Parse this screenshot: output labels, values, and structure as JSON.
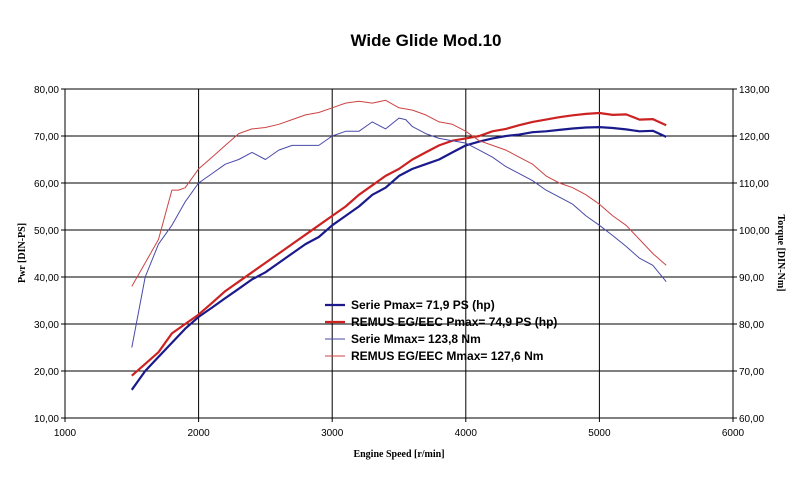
{
  "chart_data": {
    "type": "line",
    "title": "Wide Glide Mod.10",
    "xlabel": "Engine Speed [r/min]",
    "ylabel_left": "Pwr [DIN-PS]",
    "ylabel_right": "Torque [DIN-Nm]",
    "xlim": [
      1000,
      6000
    ],
    "ylim_left": [
      10,
      80
    ],
    "ylim_right": [
      60,
      130
    ],
    "x_ticks": [
      "1000",
      "2000",
      "3000",
      "4000",
      "5000",
      "6000"
    ],
    "y_ticks_left": [
      "10,00",
      "20,00",
      "30,00",
      "40,00",
      "50,00",
      "60,00",
      "70,00",
      "80,00"
    ],
    "y_ticks_right": [
      "60,00",
      "70,00",
      "80,00",
      "90,00",
      "100,00",
      "110,00",
      "120,00",
      "130,00"
    ],
    "grid": true,
    "legend_position": "lower-center",
    "series": [
      {
        "name": "Serie Pmax= 71,9 PS (hp)",
        "axis": "left",
        "color": "#1a1a8c",
        "width": 2.2,
        "x": [
          1500,
          1600,
          1700,
          1800,
          1900,
          2000,
          2100,
          2200,
          2300,
          2400,
          2500,
          2600,
          2700,
          2800,
          2900,
          3000,
          3100,
          3200,
          3300,
          3400,
          3500,
          3600,
          3700,
          3800,
          3900,
          4000,
          4100,
          4200,
          4300,
          4400,
          4500,
          4600,
          4700,
          4800,
          4900,
          5000,
          5100,
          5200,
          5300,
          5400,
          5500
        ],
        "values": [
          16,
          20,
          23,
          26,
          29,
          31.5,
          33.5,
          35.5,
          37.5,
          39.5,
          41,
          43,
          45,
          47,
          48.5,
          51,
          53,
          55,
          57.5,
          59,
          61.5,
          63,
          64,
          65,
          66.5,
          68,
          68.8,
          69.5,
          70,
          70.3,
          70.8,
          71,
          71.3,
          71.6,
          71.8,
          71.9,
          71.7,
          71.4,
          71,
          71.1,
          69.8
        ]
      },
      {
        "name": "REMUS EG/EEC Pmax=  74,9 PS (hp)",
        "axis": "left",
        "color": "#cc2222",
        "width": 2.2,
        "x": [
          1500,
          1600,
          1700,
          1800,
          1900,
          2000,
          2100,
          2200,
          2300,
          2400,
          2500,
          2600,
          2700,
          2800,
          2900,
          3000,
          3100,
          3200,
          3300,
          3400,
          3500,
          3600,
          3700,
          3800,
          3900,
          4000,
          4100,
          4200,
          4300,
          4400,
          4500,
          4600,
          4700,
          4800,
          4900,
          5000,
          5100,
          5200,
          5300,
          5400,
          5500
        ],
        "values": [
          19,
          21.5,
          24,
          28,
          30,
          32,
          34.5,
          37,
          39,
          41,
          43,
          45,
          47,
          49,
          51,
          53,
          55,
          57.5,
          59.5,
          61.5,
          63,
          65,
          66.5,
          68,
          69,
          69.5,
          70,
          71,
          71.5,
          72.3,
          73,
          73.5,
          74,
          74.4,
          74.7,
          74.9,
          74.5,
          74.6,
          73.5,
          73.6,
          72.3
        ]
      },
      {
        "name": "Serie Mmax= 123,8 Nm",
        "axis": "right",
        "color": "#4a4aa8",
        "width": 1,
        "x": [
          1500,
          1600,
          1700,
          1800,
          1900,
          2000,
          2100,
          2200,
          2300,
          2400,
          2500,
          2600,
          2700,
          2800,
          2900,
          3000,
          3100,
          3200,
          3300,
          3400,
          3500,
          3550,
          3600,
          3700,
          3800,
          3900,
          4000,
          4100,
          4200,
          4300,
          4400,
          4500,
          4600,
          4700,
          4800,
          4900,
          5000,
          5100,
          5200,
          5300,
          5400,
          5500
        ],
        "values": [
          75,
          90,
          97,
          101,
          106,
          110,
          112,
          114,
          115,
          116.5,
          115,
          117,
          118,
          118,
          118,
          120,
          121,
          121,
          123,
          121.5,
          123.8,
          123.5,
          122,
          120.5,
          119.5,
          119,
          118.5,
          117,
          115.5,
          113.5,
          112,
          110.5,
          108.5,
          107,
          105.5,
          103,
          101,
          98.8,
          96.5,
          94,
          92.5,
          89
        ]
      },
      {
        "name": "REMUS EG/EEC Mmax= 127,6 Nm",
        "axis": "right",
        "color": "#cc4444",
        "width": 1,
        "x": [
          1500,
          1600,
          1700,
          1800,
          1850,
          1900,
          2000,
          2100,
          2200,
          2300,
          2400,
          2500,
          2600,
          2700,
          2800,
          2900,
          3000,
          3100,
          3200,
          3300,
          3400,
          3500,
          3600,
          3700,
          3800,
          3900,
          4000,
          4100,
          4200,
          4300,
          4400,
          4500,
          4600,
          4700,
          4800,
          4900,
          5000,
          5100,
          5200,
          5300,
          5400,
          5500
        ],
        "values": [
          88,
          93,
          98,
          108.5,
          108.5,
          109,
          113,
          115.5,
          118,
          120.5,
          121.5,
          121.8,
          122.5,
          123.5,
          124.5,
          125,
          126,
          127,
          127.4,
          127,
          127.6,
          126,
          125.5,
          124.5,
          123,
          122.5,
          121,
          119,
          118,
          117,
          115.5,
          114,
          111.5,
          110,
          109,
          107.5,
          105.5,
          103,
          101,
          98,
          95,
          92.5
        ]
      }
    ]
  }
}
